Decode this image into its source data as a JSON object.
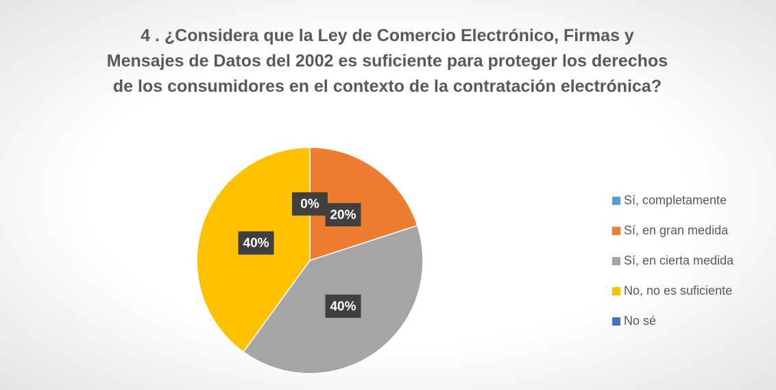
{
  "chart_data": {
    "type": "pie",
    "title": "4 . ¿Considera que la Ley de Comercio Electrónico, Firmas y Mensajes de Datos del 2002 es suficiente para proteger los derechos de los consumidores en el contexto de la contratación electrónica?",
    "categories": [
      "Sí, completamente",
      "Sí, en gran medida",
      "Sí, en cierta medida",
      "No, no es suficiente",
      "No sé"
    ],
    "values": [
      0,
      20,
      40,
      40,
      0
    ],
    "value_labels": [
      "0%",
      "20%",
      "40%",
      "40%",
      null
    ],
    "colors": [
      "#5b9bd5",
      "#ed7d31",
      "#a5a5a5",
      "#ffc000",
      "#4472c4"
    ],
    "legend": "right"
  }
}
